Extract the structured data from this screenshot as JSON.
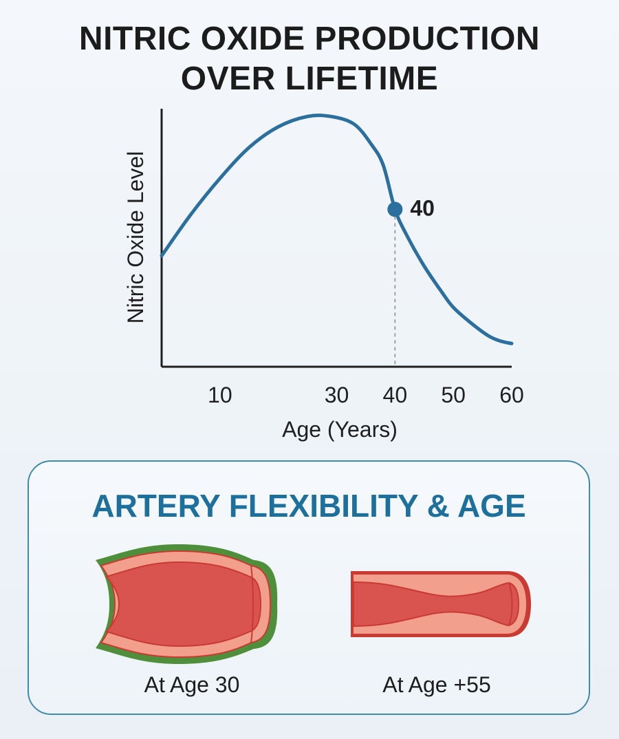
{
  "chart_data": {
    "type": "line",
    "title": [
      "NITRIC OXIDE PRODUCTION",
      "OVER LIFETIME"
    ],
    "xlabel": "Age (Years)",
    "ylabel": "Nitric Oxide Level",
    "xlim": [
      0,
      60
    ],
    "ylim": [
      0,
      100
    ],
    "xticks": [
      10,
      30,
      40,
      50,
      60
    ],
    "grid": false,
    "series": [
      {
        "color": "#2b6f9f",
        "points": [
          [
            0,
            43
          ],
          [
            5,
            59
          ],
          [
            10,
            73
          ],
          [
            15,
            85
          ],
          [
            20,
            93
          ],
          [
            25,
            97
          ],
          [
            29,
            97
          ],
          [
            33,
            94
          ],
          [
            36,
            86
          ],
          [
            38,
            78
          ],
          [
            40,
            61
          ],
          [
            42,
            51
          ],
          [
            45,
            39
          ],
          [
            48,
            29
          ],
          [
            50,
            23
          ],
          [
            53,
            17
          ],
          [
            56,
            12
          ],
          [
            58,
            10
          ],
          [
            60,
            9
          ]
        ]
      }
    ],
    "highlight": {
      "x": 40,
      "y": 61,
      "label": "40",
      "guide_line": "dashed-to-x-axis"
    }
  },
  "comparison": {
    "title": "ARTERY FLEXIBILITY & AGE",
    "items": [
      {
        "caption": "At Age 30",
        "state": "flexible-wide",
        "outline_color": "#4f8f3b"
      },
      {
        "caption": "At Age +55",
        "state": "narrowed-stiff",
        "outline_color": "#c83a32"
      }
    ]
  },
  "colors": {
    "line": "#2b6f9f",
    "axes": "#1e1e1e",
    "panel_border": "#3f8aa8",
    "panel_title": "#1d6f9c",
    "artery_fill": "#d9534f",
    "artery_wall": "#f2a08f",
    "artery_edge": "#c83a32"
  }
}
